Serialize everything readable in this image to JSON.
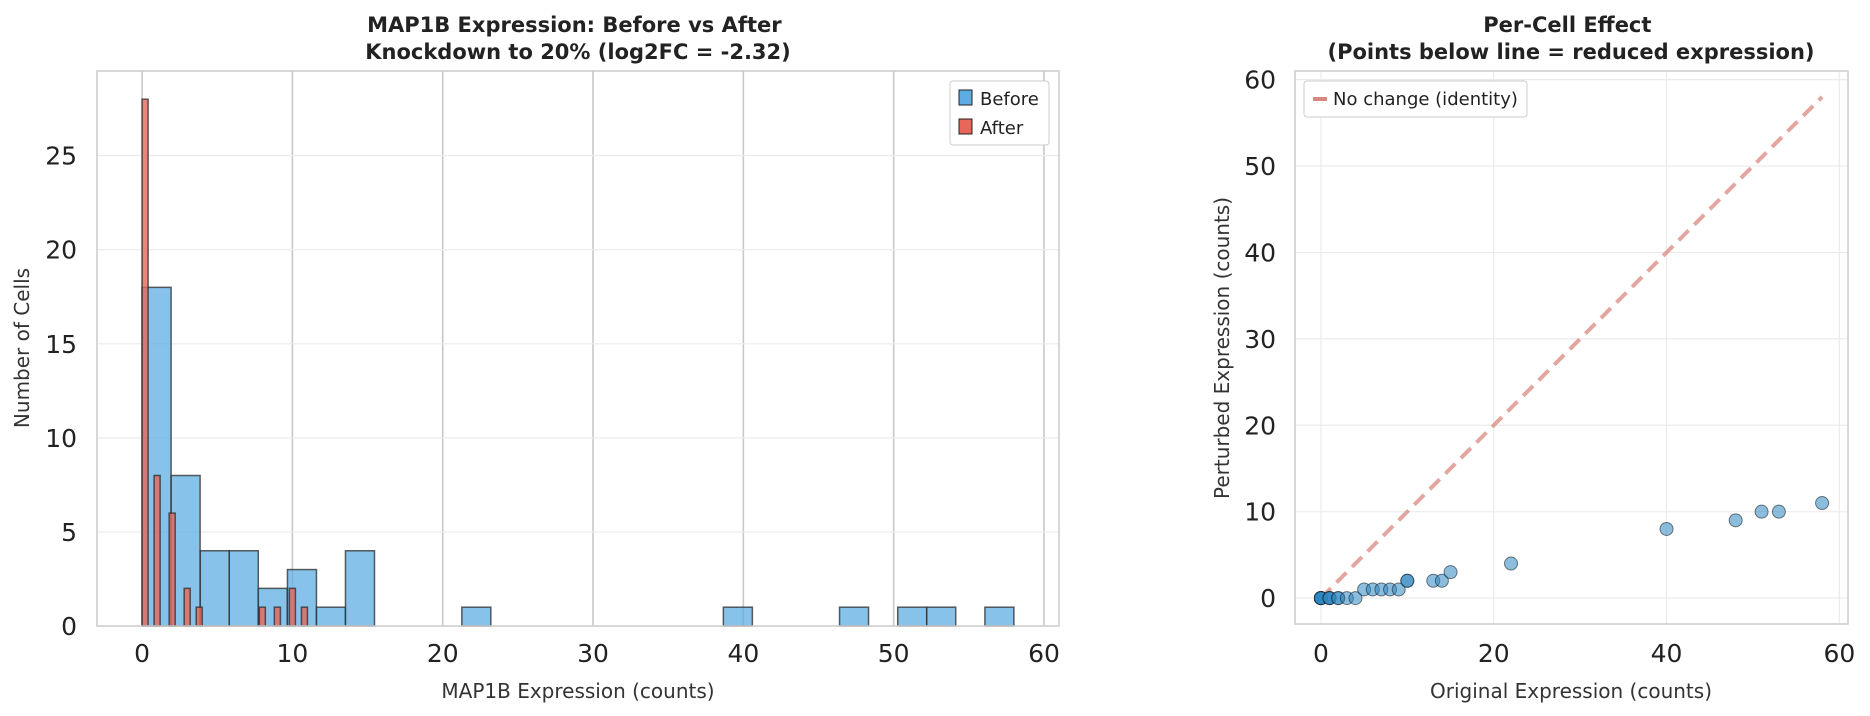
{
  "chart_data": [
    {
      "type": "bar",
      "title": "MAP1B Expression: Before vs After\nKnockdown to 20% (log2FC = -2.32)",
      "xlabel": "MAP1B Expression (counts)",
      "ylabel": "Number of Cells",
      "xlim": [
        -3,
        61
      ],
      "ylim": [
        0,
        29.5
      ],
      "xticks": [
        0,
        10,
        20,
        30,
        40,
        50,
        60
      ],
      "yticks": [
        0,
        5,
        10,
        15,
        20,
        25
      ],
      "grid": "vertical-and-horizontal",
      "legend_position": "top-right",
      "series": [
        {
          "name": "Before",
          "color": "#5dade2",
          "bin_width": 1.93,
          "bins": [
            {
              "start": 0.0,
              "count": 18
            },
            {
              "start": 1.93,
              "count": 8
            },
            {
              "start": 3.87,
              "count": 4
            },
            {
              "start": 5.8,
              "count": 4
            },
            {
              "start": 7.73,
              "count": 2
            },
            {
              "start": 9.67,
              "count": 3
            },
            {
              "start": 11.6,
              "count": 1
            },
            {
              "start": 13.53,
              "count": 4
            },
            {
              "start": 21.27,
              "count": 1
            },
            {
              "start": 38.67,
              "count": 1
            },
            {
              "start": 46.4,
              "count": 1
            },
            {
              "start": 50.27,
              "count": 1
            },
            {
              "start": 52.2,
              "count": 1
            },
            {
              "start": 56.07,
              "count": 1
            }
          ]
        },
        {
          "name": "After",
          "color": "#e8665a",
          "bin_width": 0.4,
          "bins": [
            {
              "start": 0.0,
              "count": 28
            },
            {
              "start": 0.8,
              "count": 8
            },
            {
              "start": 1.8,
              "count": 6
            },
            {
              "start": 2.8,
              "count": 2
            },
            {
              "start": 3.6,
              "count": 1
            },
            {
              "start": 7.8,
              "count": 1
            },
            {
              "start": 8.8,
              "count": 1
            },
            {
              "start": 9.8,
              "count": 2
            },
            {
              "start": 10.6,
              "count": 1
            }
          ]
        }
      ]
    },
    {
      "type": "scatter",
      "title": "Per-Cell Effect\n(Points below line = reduced expression)",
      "xlabel": "Original Expression (counts)",
      "ylabel": "Perturbed Expression (counts)",
      "xlim": [
        -3,
        61
      ],
      "ylim": [
        -3,
        61
      ],
      "xticks": [
        0,
        20,
        40,
        60
      ],
      "yticks": [
        0,
        10,
        20,
        30,
        40,
        50,
        60
      ],
      "grid": "both",
      "legend_position": "top-left",
      "point_color": "#2e86c1",
      "identity_line": {
        "name": "No change (identity)",
        "from": [
          0,
          0
        ],
        "to": [
          58,
          58
        ],
        "color": "#d98880"
      },
      "points": [
        {
          "x": 0,
          "y": 0
        },
        {
          "x": 0,
          "y": 0
        },
        {
          "x": 0,
          "y": 0
        },
        {
          "x": 0,
          "y": 0
        },
        {
          "x": 0,
          "y": 0
        },
        {
          "x": 0,
          "y": 0
        },
        {
          "x": 0,
          "y": 0
        },
        {
          "x": 0,
          "y": 0
        },
        {
          "x": 1,
          "y": 0
        },
        {
          "x": 1,
          "y": 0
        },
        {
          "x": 1,
          "y": 0
        },
        {
          "x": 1,
          "y": 0
        },
        {
          "x": 2,
          "y": 0
        },
        {
          "x": 2,
          "y": 0
        },
        {
          "x": 3,
          "y": 0
        },
        {
          "x": 4,
          "y": 0
        },
        {
          "x": 5,
          "y": 1
        },
        {
          "x": 6,
          "y": 1
        },
        {
          "x": 7,
          "y": 1
        },
        {
          "x": 8,
          "y": 1
        },
        {
          "x": 9,
          "y": 1
        },
        {
          "x": 10,
          "y": 2
        },
        {
          "x": 10,
          "y": 2
        },
        {
          "x": 13,
          "y": 2
        },
        {
          "x": 14,
          "y": 2
        },
        {
          "x": 15,
          "y": 3
        },
        {
          "x": 22,
          "y": 4
        },
        {
          "x": 40,
          "y": 8
        },
        {
          "x": 48,
          "y": 9
        },
        {
          "x": 51,
          "y": 10
        },
        {
          "x": 53,
          "y": 10
        },
        {
          "x": 58,
          "y": 11
        }
      ]
    }
  ]
}
